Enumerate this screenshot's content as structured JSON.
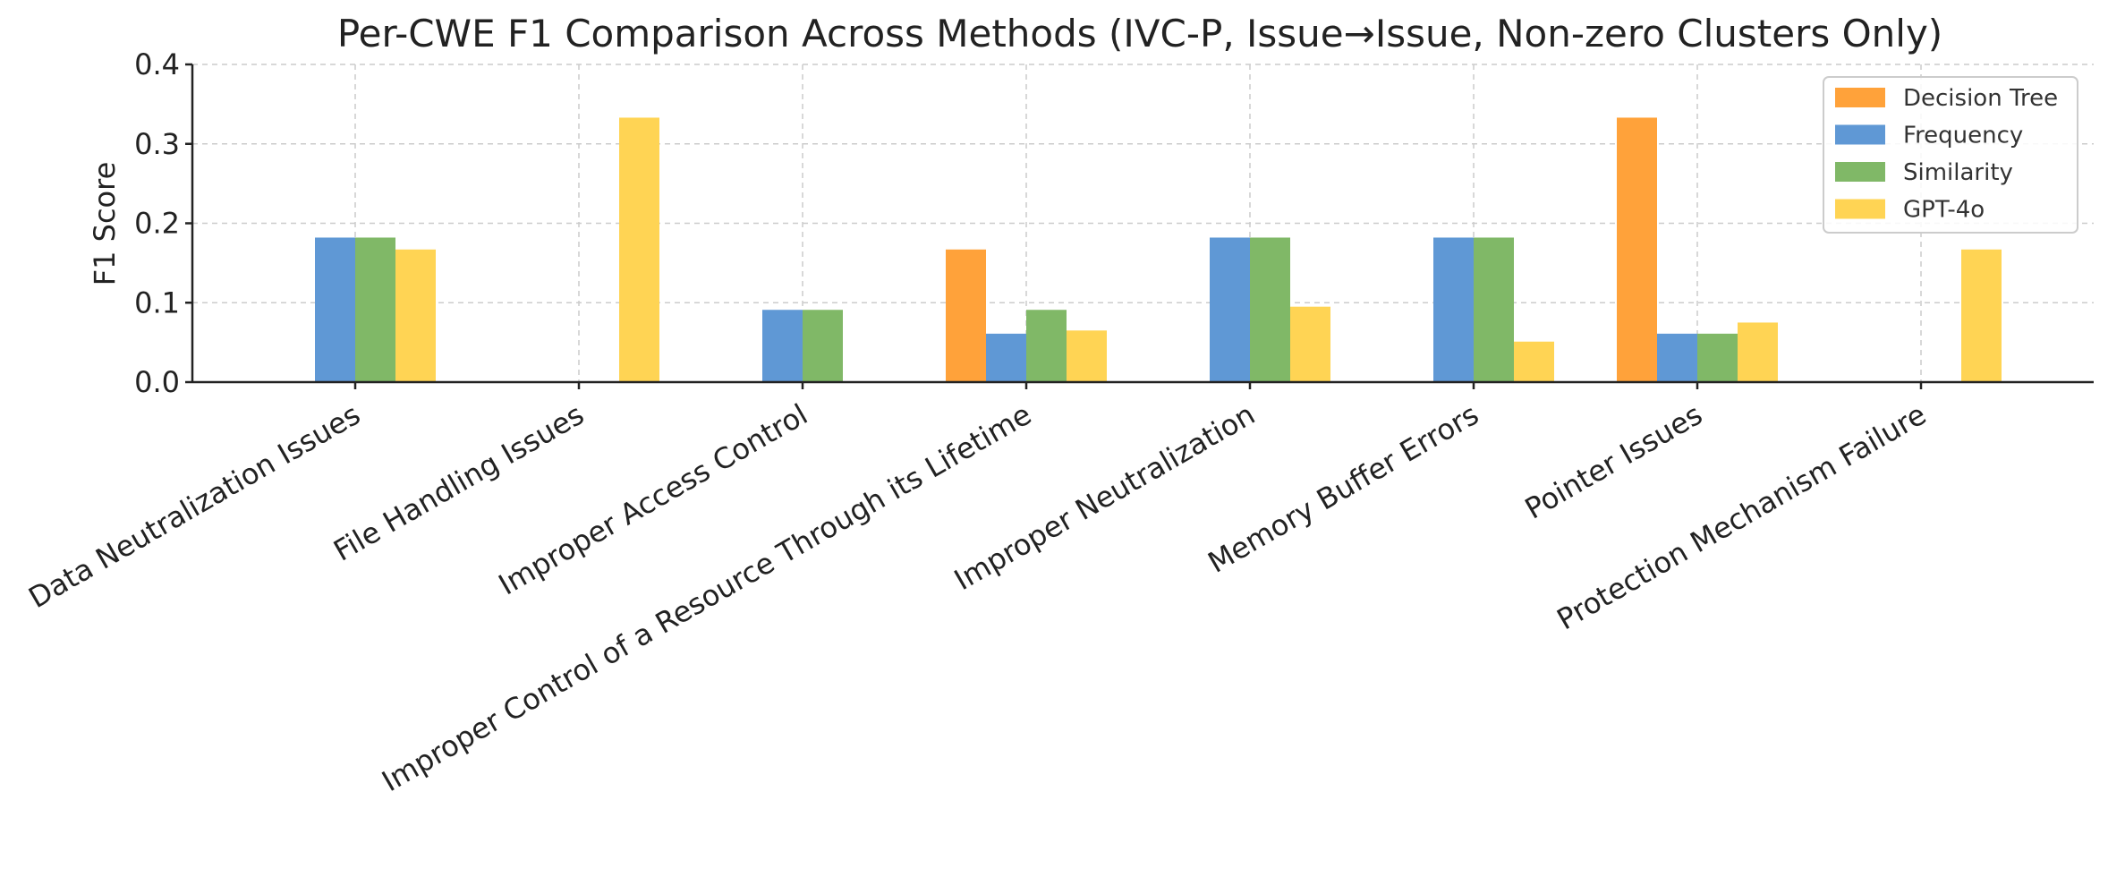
{
  "chart_data": {
    "type": "bar",
    "title": "Per-CWE F1 Comparison Across Methods (IVC-P, Issue→Issue, Non-zero Clusters Only)",
    "xlabel": "",
    "ylabel": "F1 Score",
    "ylim": [
      0,
      0.4
    ],
    "yticks": [
      "0.0",
      "0.1",
      "0.2",
      "0.3",
      "0.4"
    ],
    "grid": true,
    "legend_position": "top-right",
    "categories": [
      "Data Neutralization Issues",
      "File Handling Issues",
      "Improper Access Control",
      "Improper Control of a Resource Through its Lifetime",
      "Improper Neutralization",
      "Memory Buffer Errors",
      "Pointer Issues",
      "Protection Mechanism Failure"
    ],
    "series": [
      {
        "name": "Decision Tree",
        "color": "#FFA23A",
        "values": [
          0,
          0,
          0,
          0.167,
          0,
          0,
          0.333,
          0
        ]
      },
      {
        "name": "Frequency",
        "color": "#5F98D5",
        "values": [
          0.182,
          0,
          0.091,
          0.061,
          0.182,
          0.182,
          0.061,
          0
        ]
      },
      {
        "name": "Similarity",
        "color": "#80B867",
        "values": [
          0.182,
          0,
          0.091,
          0.091,
          0.182,
          0.182,
          0.061,
          0
        ]
      },
      {
        "name": "GPT-4o",
        "color": "#FFD454",
        "values": [
          0.167,
          0.333,
          0,
          0.065,
          0.095,
          0.051,
          0.075,
          0.167
        ]
      }
    ]
  }
}
